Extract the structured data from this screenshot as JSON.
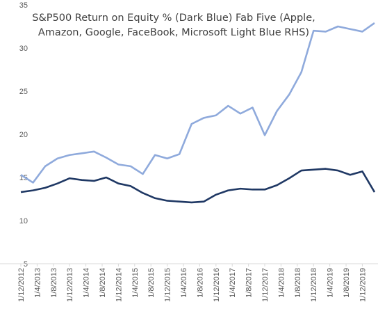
{
  "chart_data": {
    "type": "line",
    "title": "S&P500 Return on Equity % (Dark Blue) Fab Five (Apple, Amazon, Google, FaceBook,  Microsoft Light Blue RHS)",
    "x": [
      "1/12/2012",
      "1/3/2013",
      "1/6/2013",
      "1/9/2013",
      "1/12/2013",
      "1/3/2014",
      "1/6/2014",
      "1/9/2014",
      "1/12/2014",
      "1/3/2015",
      "1/6/2015",
      "1/9/2015",
      "1/12/2015",
      "1/3/2016",
      "1/6/2016",
      "1/9/2016",
      "1/12/2016",
      "1/3/2017",
      "1/6/2017",
      "1/9/2017",
      "1/12/2017",
      "1/3/2018",
      "1/6/2018",
      "1/9/2018",
      "1/12/2018",
      "1/3/2019",
      "1/6/2019",
      "1/9/2019",
      "1/12/2019",
      "1/3/2020"
    ],
    "xticks": [
      "1/12/2012",
      "1/4/2013",
      "1/8/2013",
      "1/12/2013",
      "1/4/2014",
      "1/8/2014",
      "1/12/2014",
      "1/4/2015",
      "1/8/2015",
      "1/12/2015",
      "1/4/2016",
      "1/8/2016",
      "1/12/2016",
      "1/4/2017",
      "1/8/2017",
      "1/12/2017",
      "1/4/2018",
      "1/8/2018",
      "1/12/2018",
      "1/4/2019",
      "1/8/2019",
      "1/12/2019"
    ],
    "series": [
      {
        "color": "#1f3864",
        "values": [
          13.3,
          13.5,
          13.8,
          14.3,
          14.9,
          14.7,
          14.6,
          15.0,
          14.3,
          14.0,
          13.2,
          12.6,
          12.3,
          12.2,
          12.1,
          12.2,
          13.0,
          13.5,
          13.7,
          13.6,
          13.6,
          14.1,
          14.9,
          15.8,
          15.9,
          16.0,
          15.8,
          15.3,
          15.7,
          13.3
        ]
      },
      {
        "color": "#8faadc",
        "values": [
          15.3,
          14.4,
          16.3,
          17.2,
          17.6,
          17.8,
          18.0,
          17.3,
          16.5,
          16.3,
          15.4,
          17.6,
          17.2,
          17.7,
          21.2,
          21.9,
          22.2,
          23.3,
          22.4,
          23.1,
          19.9,
          22.7,
          24.6,
          27.2,
          32.0,
          31.9,
          32.5,
          32.2,
          31.9,
          32.9
        ]
      }
    ],
    "ylim": [
      5,
      35
    ],
    "yticks": [
      5,
      10,
      15,
      20,
      25,
      30,
      35
    ]
  }
}
